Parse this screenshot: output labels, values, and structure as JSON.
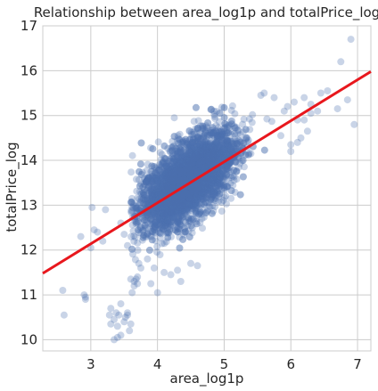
{
  "chart_data": {
    "type": "scatter",
    "title": "Relationship between area_log1p and totalPrice_log",
    "xlabel": "area_log1p",
    "ylabel": "totalPrice_log",
    "xlim": [
      2.28,
      7.2
    ],
    "ylim": [
      9.75,
      17.0
    ],
    "xticks": [
      "3",
      "4",
      "5",
      "6",
      "7"
    ],
    "yticks": [
      "10",
      "11",
      "12",
      "13",
      "14",
      "15",
      "16",
      "17"
    ],
    "grid": true,
    "colors": {
      "points": "#4c72b0",
      "regression": "#e8171d",
      "grid": "#cccccc",
      "background": "#ffffff"
    },
    "point_alpha": 0.3,
    "regression_line": {
      "x": [
        2.28,
        7.2
      ],
      "y": [
        11.48,
        15.98
      ]
    },
    "bulk": {
      "center_x": 4.45,
      "center_y": 13.55,
      "x_spread": 0.35,
      "slope": 0.95,
      "y_spread": 0.42,
      "x_range": [
        3.6,
        5.8
      ],
      "count": 4200
    },
    "outliers": {
      "x": [
        2.6,
        2.58,
        2.92,
        2.92,
        2.9,
        3.0,
        3.02,
        3.1,
        3.28,
        3.3,
        3.35,
        3.38,
        3.4,
        3.42,
        3.45,
        3.5,
        3.52,
        3.55,
        3.58,
        3.6,
        3.35,
        3.4,
        3.3,
        3.45,
        3.55,
        3.6,
        3.65,
        3.65,
        3.7,
        3.7,
        3.62,
        3.68,
        3.75,
        3.72,
        3.55,
        3.5,
        3.45,
        3.22,
        3.18,
        2.85,
        3.05,
        3.95,
        4.1,
        4.3,
        4.5,
        4.6,
        3.85,
        3.9,
        4.0,
        4.2,
        4.35,
        5.9,
        6.05,
        6.1,
        6.2,
        6.3,
        6.45,
        6.55,
        6.75,
        6.85,
        6.9,
        6.95,
        6.7,
        6.4,
        6.0,
        5.85,
        6.15,
        6.25,
        5.75,
        5.6,
        5.55,
        5.95,
        6.1,
        6.0,
        6.3,
        6.2
      ],
      "y": [
        10.55,
        11.1,
        10.95,
        10.9,
        11.0,
        12.05,
        12.95,
        12.4,
        10.55,
        10.35,
        10.45,
        10.6,
        10.3,
        10.55,
        10.1,
        10.4,
        10.5,
        10.55,
        10.2,
        10.35,
        10.0,
        10.05,
        10.7,
        10.8,
        10.6,
        11.35,
        11.2,
        11.3,
        11.4,
        11.25,
        11.05,
        11.35,
        11.6,
        11.7,
        12.1,
        12.35,
        12.6,
        12.9,
        12.2,
        12.3,
        12.45,
        11.6,
        11.5,
        11.55,
        11.7,
        11.65,
        11.8,
        11.25,
        11.05,
        11.45,
        11.3,
        15.1,
        15.3,
        14.9,
        15.4,
        15.25,
        15.5,
        15.55,
        16.2,
        15.35,
        16.7,
        14.8,
        15.15,
        15.1,
        14.2,
        14.55,
        14.5,
        14.65,
        15.4,
        15.5,
        15.45,
        15.2,
        14.4,
        14.35,
        15.05,
        14.9
      ]
    }
  }
}
